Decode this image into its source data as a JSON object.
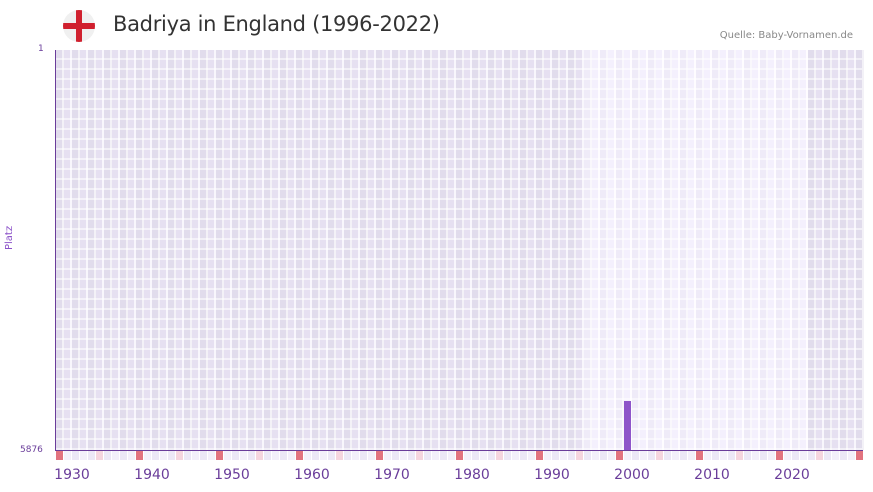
{
  "header": {
    "title": "Badriya in England (1996-2022)",
    "source": "Quelle: Baby-Vornamen.de",
    "flag_icon": "england-flag-icon"
  },
  "chart_data": {
    "type": "bar",
    "title": "Badriya in England (1996-2022)",
    "xlabel": "",
    "ylabel": "Platz",
    "y_axis_inverted": true,
    "ylim": [
      1,
      5876
    ],
    "y_tick_labels": [
      "1",
      "5876"
    ],
    "x_range": [
      1928,
      2028
    ],
    "x_tick_labels": [
      "1930",
      "1940",
      "1950",
      "1960",
      "1970",
      "1980",
      "1990",
      "2000",
      "2010",
      "2020"
    ],
    "highlighted_range": [
      1994,
      2021
    ],
    "categories": [
      "1999"
    ],
    "values": [
      5150
    ],
    "series": [
      {
        "name": "Badriya",
        "x": [
          1999
        ],
        "rank": [
          5150
        ]
      }
    ],
    "grid": true,
    "legend": null
  },
  "colors": {
    "bar": "#8e55c9",
    "axis": "#6a3d9a",
    "bg_dark": "#e1dcec",
    "bg_light": "#efebf8",
    "decade_tick": "#e2737f",
    "half_decade_tick": "#f5d5de"
  }
}
